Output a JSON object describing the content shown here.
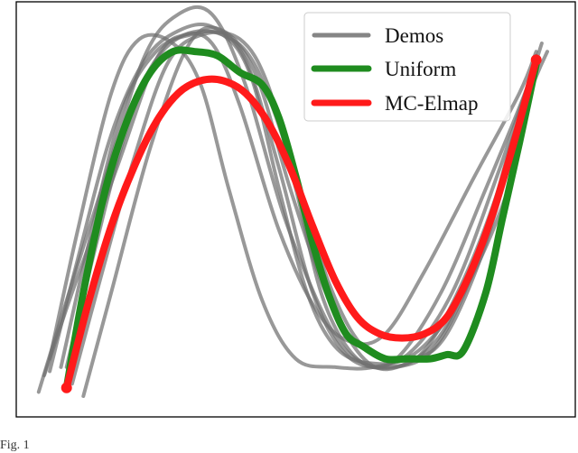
{
  "caption": "Fig. 1",
  "chart_data": {
    "type": "line",
    "title": "",
    "xlabel": "",
    "ylabel": "",
    "axes_ticks": false,
    "grid": false,
    "legend": {
      "position": "top-right",
      "entries": [
        "Demos",
        "Uniform",
        "MC-Elmap"
      ]
    },
    "colors": {
      "Demos": "#707070",
      "Uniform": "#1f8c1f",
      "MC-Elmap": "#ff1a1a"
    },
    "series": [
      {
        "name": "Demos",
        "demos": [
          [
            [
              0.05,
              0.1
            ],
            [
              0.1,
              0.3
            ],
            [
              0.18,
              0.6
            ],
            [
              0.25,
              0.86
            ],
            [
              0.3,
              0.92
            ],
            [
              0.35,
              0.9
            ],
            [
              0.4,
              0.75
            ],
            [
              0.47,
              0.45
            ],
            [
              0.54,
              0.25
            ],
            [
              0.6,
              0.18
            ],
            [
              0.66,
              0.2
            ],
            [
              0.73,
              0.35
            ],
            [
              0.82,
              0.58
            ],
            [
              0.9,
              0.78
            ],
            [
              0.93,
              0.88
            ]
          ],
          [
            [
              0.04,
              0.06
            ],
            [
              0.09,
              0.28
            ],
            [
              0.16,
              0.58
            ],
            [
              0.23,
              0.87
            ],
            [
              0.29,
              0.97
            ],
            [
              0.35,
              0.97
            ],
            [
              0.41,
              0.8
            ],
            [
              0.48,
              0.48
            ],
            [
              0.56,
              0.22
            ],
            [
              0.62,
              0.13
            ],
            [
              0.68,
              0.14
            ],
            [
              0.76,
              0.3
            ],
            [
              0.84,
              0.55
            ],
            [
              0.91,
              0.78
            ],
            [
              0.94,
              0.9
            ]
          ],
          [
            [
              0.12,
              0.05
            ],
            [
              0.17,
              0.3
            ],
            [
              0.24,
              0.65
            ],
            [
              0.31,
              0.9
            ],
            [
              0.37,
              0.93
            ],
            [
              0.43,
              0.82
            ],
            [
              0.49,
              0.55
            ],
            [
              0.56,
              0.28
            ],
            [
              0.63,
              0.13
            ],
            [
              0.7,
              0.13
            ],
            [
              0.77,
              0.22
            ],
            [
              0.84,
              0.45
            ],
            [
              0.89,
              0.68
            ],
            [
              0.93,
              0.82
            ],
            [
              0.95,
              0.88
            ]
          ],
          [
            [
              0.06,
              0.14
            ],
            [
              0.11,
              0.45
            ],
            [
              0.17,
              0.78
            ],
            [
              0.22,
              0.91
            ],
            [
              0.28,
              0.9
            ],
            [
              0.33,
              0.8
            ],
            [
              0.38,
              0.55
            ],
            [
              0.44,
              0.28
            ],
            [
              0.5,
              0.14
            ],
            [
              0.57,
              0.12
            ],
            [
              0.64,
              0.12
            ],
            [
              0.72,
              0.16
            ],
            [
              0.8,
              0.3
            ],
            [
              0.88,
              0.55
            ],
            [
              0.93,
              0.85
            ]
          ],
          [
            [
              0.09,
              0.12
            ],
            [
              0.14,
              0.4
            ],
            [
              0.19,
              0.66
            ],
            [
              0.24,
              0.84
            ],
            [
              0.3,
              0.92
            ],
            [
              0.37,
              0.92
            ],
            [
              0.43,
              0.84
            ],
            [
              0.5,
              0.58
            ],
            [
              0.56,
              0.32
            ],
            [
              0.62,
              0.17
            ],
            [
              0.69,
              0.14
            ],
            [
              0.76,
              0.18
            ],
            [
              0.83,
              0.38
            ],
            [
              0.89,
              0.65
            ],
            [
              0.93,
              0.86
            ]
          ],
          [
            [
              0.1,
              0.08
            ],
            [
              0.15,
              0.33
            ],
            [
              0.21,
              0.62
            ],
            [
              0.27,
              0.85
            ],
            [
              0.33,
              0.92
            ],
            [
              0.4,
              0.91
            ],
            [
              0.45,
              0.8
            ],
            [
              0.5,
              0.55
            ],
            [
              0.55,
              0.28
            ],
            [
              0.61,
              0.14
            ],
            [
              0.68,
              0.12
            ],
            [
              0.75,
              0.17
            ],
            [
              0.82,
              0.36
            ],
            [
              0.88,
              0.62
            ],
            [
              0.93,
              0.86
            ]
          ],
          [
            [
              0.06,
              0.11
            ],
            [
              0.11,
              0.38
            ],
            [
              0.17,
              0.68
            ],
            [
              0.23,
              0.86
            ],
            [
              0.29,
              0.93
            ],
            [
              0.35,
              0.94
            ],
            [
              0.41,
              0.86
            ],
            [
              0.47,
              0.6
            ],
            [
              0.53,
              0.3
            ],
            [
              0.59,
              0.15
            ],
            [
              0.66,
              0.12
            ],
            [
              0.73,
              0.16
            ],
            [
              0.81,
              0.36
            ],
            [
              0.88,
              0.62
            ],
            [
              0.93,
              0.87
            ]
          ],
          [
            [
              0.08,
              0.12
            ],
            [
              0.13,
              0.42
            ],
            [
              0.19,
              0.74
            ],
            [
              0.25,
              0.88
            ],
            [
              0.31,
              0.92
            ],
            [
              0.37,
              0.92
            ],
            [
              0.42,
              0.82
            ],
            [
              0.47,
              0.55
            ],
            [
              0.52,
              0.3
            ],
            [
              0.57,
              0.17
            ],
            [
              0.63,
              0.13
            ],
            [
              0.7,
              0.15
            ],
            [
              0.78,
              0.3
            ],
            [
              0.86,
              0.58
            ],
            [
              0.93,
              0.86
            ]
          ]
        ]
      },
      {
        "name": "Uniform",
        "points": [
          [
            0.09,
            0.07
          ],
          [
            0.12,
            0.3
          ],
          [
            0.16,
            0.55
          ],
          [
            0.2,
            0.72
          ],
          [
            0.24,
            0.83
          ],
          [
            0.28,
            0.88
          ],
          [
            0.32,
            0.88
          ],
          [
            0.36,
            0.87
          ],
          [
            0.4,
            0.83
          ],
          [
            0.44,
            0.8
          ],
          [
            0.47,
            0.72
          ],
          [
            0.5,
            0.58
          ],
          [
            0.53,
            0.42
          ],
          [
            0.56,
            0.29
          ],
          [
            0.59,
            0.2
          ],
          [
            0.62,
            0.17
          ],
          [
            0.66,
            0.14
          ],
          [
            0.7,
            0.14
          ],
          [
            0.74,
            0.14
          ],
          [
            0.77,
            0.15
          ],
          [
            0.8,
            0.16
          ],
          [
            0.84,
            0.3
          ],
          [
            0.87,
            0.48
          ],
          [
            0.9,
            0.66
          ],
          [
            0.93,
            0.85
          ]
        ]
      },
      {
        "name": "MC-Elmap",
        "points": [
          [
            0.09,
            0.07
          ],
          [
            0.13,
            0.28
          ],
          [
            0.17,
            0.46
          ],
          [
            0.21,
            0.6
          ],
          [
            0.25,
            0.71
          ],
          [
            0.29,
            0.78
          ],
          [
            0.33,
            0.81
          ],
          [
            0.37,
            0.81
          ],
          [
            0.41,
            0.78
          ],
          [
            0.45,
            0.71
          ],
          [
            0.49,
            0.6
          ],
          [
            0.53,
            0.46
          ],
          [
            0.57,
            0.33
          ],
          [
            0.61,
            0.24
          ],
          [
            0.65,
            0.2
          ],
          [
            0.69,
            0.19
          ],
          [
            0.73,
            0.2
          ],
          [
            0.77,
            0.24
          ],
          [
            0.81,
            0.34
          ],
          [
            0.85,
            0.48
          ],
          [
            0.89,
            0.66
          ],
          [
            0.93,
            0.86
          ]
        ]
      }
    ]
  }
}
